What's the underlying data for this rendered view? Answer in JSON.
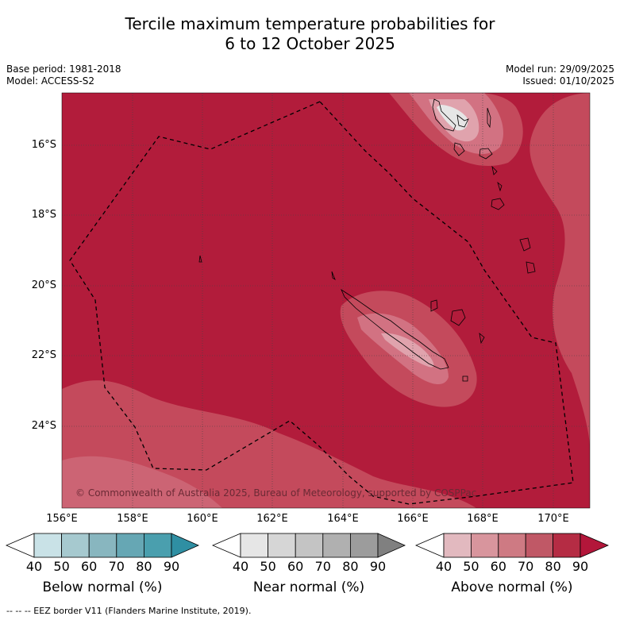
{
  "title_line1": "Tercile maximum temperature probabilities for",
  "title_line2": "6 to 12 October 2025",
  "base_period": "Base period: 1981-2018",
  "model": "Model: ACCESS-S2",
  "model_run": "Model run: 29/09/2025",
  "issued": "Issued: 01/10/2025",
  "lat_labels": [
    "16°S",
    "18°S",
    "20°S",
    "22°S",
    "24°S"
  ],
  "lon_labels": [
    "156°E",
    "158°E",
    "160°E",
    "162°E",
    "164°E",
    "166°E",
    "168°E",
    "170°E"
  ],
  "copyright": "© Commonwealth of Australia 2025, Bureau of Meteorology, supported by COSPPac",
  "colorbars": [
    {
      "title": "Below normal (%)",
      "ticks": [
        "40",
        "50",
        "60",
        "70",
        "80",
        "90"
      ],
      "colors": [
        "#ffffff",
        "#c9e2e7",
        "#a6c9cf",
        "#88b6bf",
        "#66a7b4",
        "#4a9fae",
        "#2f8fa3"
      ]
    },
    {
      "title": "Near normal (%)",
      "ticks": [
        "40",
        "50",
        "60",
        "70",
        "80",
        "90"
      ],
      "colors": [
        "#ffffff",
        "#e6e6e6",
        "#d6d6d6",
        "#c4c4c4",
        "#b0b0b0",
        "#9c9c9c",
        "#808080"
      ]
    },
    {
      "title": "Above normal (%)",
      "ticks": [
        "40",
        "50",
        "60",
        "70",
        "80",
        "90"
      ],
      "colors": [
        "#ffffff",
        "#e2b9bf",
        "#d8959d",
        "#ce7a83",
        "#c05866",
        "#b52c44",
        "#b3163a"
      ]
    }
  ],
  "legend_line": "-- -- -- EEZ border V11 (Flanders Marine Institute, 2019).",
  "colors": {
    "map_base": "#b21c3b",
    "map_lighter": "#c44a5c",
    "map_light": "#d27282",
    "map_lightest": "#e0a3ad"
  }
}
